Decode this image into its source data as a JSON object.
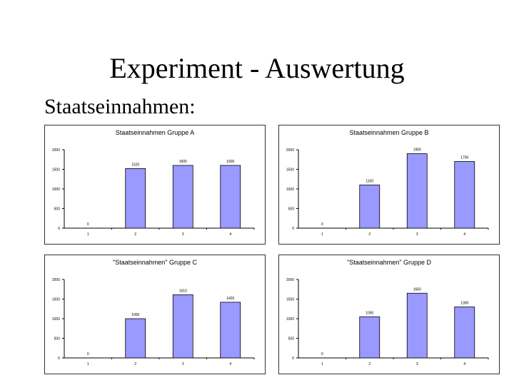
{
  "slide": {
    "title": "Experiment - Auswertung",
    "subtitle": "Staatseinnahmen:"
  },
  "colors": {
    "bar_fill": "#9999ff",
    "bar_stroke": "#000000",
    "axis": "#000000",
    "panel_border": "#333333"
  },
  "chart_data": [
    {
      "type": "bar",
      "title": "Staatseinnahmen Gruppe A",
      "categories": [
        "1",
        "2",
        "3",
        "4"
      ],
      "values": [
        0,
        1520,
        1600,
        1600
      ],
      "value_labels": [
        "0",
        "1520",
        "1600",
        "1600"
      ],
      "yticks": [
        "2000",
        "1500",
        "1000",
        "500",
        "0"
      ],
      "ylim": [
        0,
        2000
      ],
      "grid": false,
      "legend": "none"
    },
    {
      "type": "bar",
      "title": "Staatseinnahmen Gruppe B",
      "categories": [
        "1",
        "2",
        "3",
        "4"
      ],
      "values": [
        0,
        1100,
        1900,
        1700
      ],
      "value_labels": [
        "0",
        "1100",
        "1900",
        "1700"
      ],
      "yticks": [
        "2000",
        "1500",
        "1000",
        "500",
        "0"
      ],
      "ylim": [
        0,
        2000
      ],
      "grid": false,
      "legend": "none"
    },
    {
      "type": "bar",
      "title": "\"Staatseinnahmen\" Gruppe C",
      "categories": [
        "1",
        "2",
        "3",
        "4"
      ],
      "values": [
        0,
        1000,
        1610,
        1420
      ],
      "value_labels": [
        "0",
        "1000",
        "1610",
        "1420"
      ],
      "yticks": [
        "2000",
        "1500",
        "1000",
        "500",
        "0"
      ],
      "ylim": [
        0,
        2000
      ],
      "grid": false,
      "legend": "none"
    },
    {
      "type": "bar",
      "title": "\"Staatseinnahmen\" Gruppe D",
      "categories": [
        "1",
        "2",
        "3",
        "4"
      ],
      "values": [
        0,
        1050,
        1650,
        1300
      ],
      "value_labels": [
        "0",
        "1050",
        "1650",
        "1300"
      ],
      "yticks": [
        "2000",
        "1500",
        "1000",
        "500",
        "0"
      ],
      "ylim": [
        0,
        2000
      ],
      "grid": false,
      "legend": "none"
    }
  ]
}
